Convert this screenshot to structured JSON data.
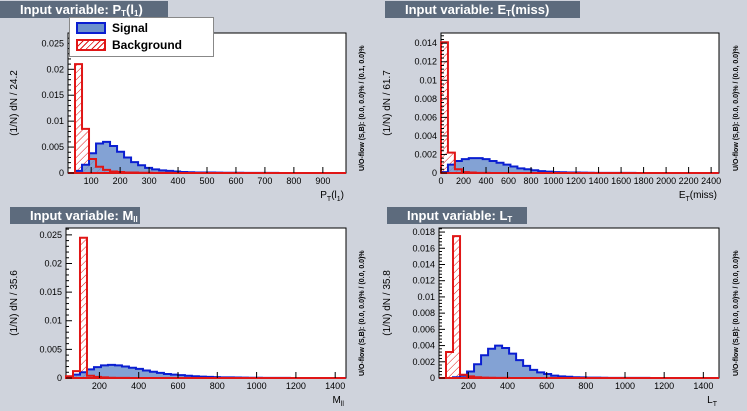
{
  "colors": {
    "signal_fill": "#6d92cc",
    "signal_line": "#0a1ed1",
    "background_line": "#e01616",
    "banner": "#5d6b7d",
    "canvas": "#cfd3dc"
  },
  "legend": {
    "signal": "Signal",
    "background": "Background"
  },
  "chart_data": [
    {
      "type": "bar",
      "title": "Input variable: P_T(l_1)",
      "title_main": "Input variable: P",
      "title_sub": "T",
      "title_tail": "(l",
      "title_sub2": "1",
      "title_end": ")",
      "xlabel": "P_T(l_1)",
      "ylabel": "(1/N) dN / 24.2",
      "overflow_label": "U/O-flow (S,B): (0.0, 0.0)% / (0.1, 0.0)%",
      "xlim": [
        20,
        980
      ],
      "ylim": [
        0,
        0.027
      ],
      "xticks": [
        100,
        200,
        300,
        400,
        500,
        600,
        700,
        800,
        900
      ],
      "xtick_labels": [
        "100",
        "200",
        "300",
        "400",
        "500",
        "600",
        "700",
        "800",
        "900"
      ],
      "yticks": [
        0,
        0.005,
        0.01,
        0.015,
        0.02,
        0.025
      ],
      "ytick_labels": [
        "0",
        "0.005",
        "0.01",
        "0.015",
        "0.02",
        "0.025"
      ],
      "bin_edges_start": 20,
      "bin_width": 24.2,
      "series": [
        {
          "name": "Signal",
          "values": [
            0.0,
            0.0004,
            0.0016,
            0.0038,
            0.0057,
            0.006,
            0.0052,
            0.0041,
            0.003,
            0.0021,
            0.0015,
            0.001,
            0.0007,
            0.0005,
            0.0004,
            0.0003,
            0.0002,
            0.00015,
            0.0001,
            0.0001,
            0.0001,
            8e-05,
            6e-05,
            5e-05,
            4e-05,
            3e-05,
            3e-05,
            2e-05,
            2e-05,
            2e-05,
            1e-05,
            1e-05,
            1e-05,
            1e-05,
            1e-05,
            1e-05,
            1e-05,
            1e-05,
            1e-05,
            0.0
          ]
        },
        {
          "name": "Background",
          "values": [
            0.0,
            0.021,
            0.0085,
            0.0027,
            0.0012,
            0.0006,
            0.0003,
            0.0002,
            0.0001,
            0.0001,
            5e-05,
            4e-05,
            3e-05,
            2e-05,
            2e-05,
            1e-05,
            1e-05,
            0.0,
            0.0,
            0.0,
            0.0,
            0.0,
            0.0,
            0.0,
            0.0,
            0.0,
            0.0,
            0.0,
            0.0,
            0.0,
            0.0,
            0.0,
            0.0,
            0.0,
            0.0,
            0.0,
            0.0,
            0.0,
            0.0,
            0.0
          ]
        }
      ]
    },
    {
      "type": "bar",
      "title": "Input variable: E_T(miss)",
      "title_main": "Input variable: E",
      "title_sub": "T",
      "title_tail": "(miss)",
      "title_sub2": "",
      "title_end": "",
      "xlabel": "E_T(miss)",
      "ylabel": "(1/N) dN / 61.7",
      "overflow_label": "U/O-flow (S,B): (0.0, 0.0)% / (0.0, 0.0)%",
      "xlim": [
        0,
        2470
      ],
      "ylim": [
        0,
        0.0151
      ],
      "xticks": [
        0,
        200,
        400,
        600,
        800,
        1000,
        1200,
        1400,
        1600,
        1800,
        2000,
        2200,
        2400
      ],
      "xtick_labels": [
        "0",
        "200",
        "400",
        "600",
        "800",
        "1000",
        "1200",
        "1400",
        "1600",
        "1800",
        "2000",
        "2200",
        "2400"
      ],
      "yticks": [
        0,
        0.002,
        0.004,
        0.006,
        0.008,
        0.01,
        0.012,
        0.014
      ],
      "ytick_labels": [
        "0",
        "0.002",
        "0.004",
        "0.006",
        "0.008",
        "0.01",
        "0.012",
        "0.014"
      ],
      "bin_edges_start": 0,
      "bin_width": 61.7,
      "series": [
        {
          "name": "Signal",
          "values": [
            0.0001,
            0.0009,
            0.0013,
            0.0015,
            0.0016,
            0.0016,
            0.0015,
            0.0013,
            0.0011,
            0.0009,
            0.0007,
            0.0005,
            0.0004,
            0.0003,
            0.0002,
            0.00015,
            0.0001,
            8e-05,
            6e-05,
            5e-05,
            4e-05,
            3e-05,
            2e-05,
            2e-05,
            1e-05,
            1e-05,
            1e-05,
            1e-05,
            0.0,
            0.0,
            0.0,
            0.0,
            0.0,
            0.0,
            0.0,
            0.0,
            0.0,
            0.0,
            0.0,
            0.0
          ]
        },
        {
          "name": "Background",
          "values": [
            0.0141,
            0.0022,
            0.0004,
            0.0001,
            5e-05,
            2e-05,
            1e-05,
            0.0,
            0.0,
            0.0,
            0.0,
            0.0,
            0.0,
            0.0,
            0.0,
            0.0,
            0.0,
            0.0,
            0.0,
            0.0,
            0.0,
            0.0,
            0.0,
            0.0,
            0.0,
            0.0,
            0.0,
            0.0,
            0.0,
            0.0,
            0.0,
            0.0,
            0.0,
            0.0,
            0.0,
            0.0,
            0.0,
            0.0,
            0.0,
            0.0
          ]
        }
      ]
    },
    {
      "type": "bar",
      "title": "Input variable: M_ll",
      "title_main": "Input variable: M",
      "title_sub": "ll",
      "title_tail": "",
      "title_sub2": "",
      "title_end": "",
      "xlabel": "M_ll",
      "ylabel": "(1/N) dN / 35.6",
      "overflow_label": "U/O-flow (S,B): (0.0, 0.0)% / (0.0, 0.0)%",
      "xlim": [
        30,
        1455
      ],
      "ylim": [
        0,
        0.0262
      ],
      "xticks": [
        200,
        400,
        600,
        800,
        1000,
        1200,
        1400
      ],
      "xtick_labels": [
        "200",
        "400",
        "600",
        "800",
        "1000",
        "1200",
        "1400"
      ],
      "yticks": [
        0,
        0.005,
        0.01,
        0.015,
        0.02,
        0.025
      ],
      "ytick_labels": [
        "0",
        "0.005",
        "0.01",
        "0.015",
        "0.02",
        "0.025"
      ],
      "bin_edges_start": 30,
      "bin_width": 35.6,
      "series": [
        {
          "name": "Signal",
          "values": [
            0.0002,
            0.0006,
            0.001,
            0.0015,
            0.0019,
            0.0022,
            0.0023,
            0.0022,
            0.002,
            0.0018,
            0.0016,
            0.0013,
            0.0011,
            0.0009,
            0.0007,
            0.0006,
            0.0005,
            0.0004,
            0.0003,
            0.00025,
            0.0002,
            0.00015,
            0.00012,
            0.0001,
            8e-05,
            6e-05,
            5e-05,
            4e-05,
            3e-05,
            2e-05,
            2e-05,
            2e-05,
            1e-05,
            1e-05,
            1e-05,
            1e-05,
            1e-05,
            0.0,
            0.0,
            0.0
          ]
        },
        {
          "name": "Background",
          "values": [
            0.0003,
            0.0012,
            0.0245,
            0.0004,
            0.0002,
            0.0001,
            5e-05,
            3e-05,
            2e-05,
            1e-05,
            1e-05,
            0.0,
            0.0,
            0.0,
            0.0,
            0.0,
            0.0,
            0.0,
            0.0,
            0.0,
            0.0,
            0.0,
            0.0,
            0.0,
            0.0,
            0.0,
            0.0,
            0.0,
            0.0,
            0.0,
            0.0,
            0.0,
            0.0,
            0.0,
            0.0,
            0.0,
            0.0,
            0.0,
            0.0,
            0.0
          ]
        }
      ]
    },
    {
      "type": "bar",
      "title": "Input variable: L_T",
      "title_main": "Input variable: L",
      "title_sub": "T",
      "title_tail": "",
      "title_sub2": "",
      "title_end": "",
      "xlabel": "L_T",
      "ylabel": "(1/N) dN / 35.8",
      "overflow_label": "U/O-flow (S,B): (0.0, 0.0)% / (0.0, 0.0)%",
      "xlim": [
        50,
        1480
      ],
      "ylim": [
        0,
        0.0185
      ],
      "xticks": [
        200,
        400,
        600,
        800,
        1000,
        1200,
        1400
      ],
      "xtick_labels": [
        "200",
        "400",
        "600",
        "800",
        "1000",
        "1200",
        "1400"
      ],
      "yticks": [
        0,
        0.002,
        0.004,
        0.006,
        0.008,
        0.01,
        0.012,
        0.014,
        0.016,
        0.018
      ],
      "ytick_labels": [
        "0",
        "0.002",
        "0.004",
        "0.006",
        "0.008",
        "0.01",
        "0.012",
        "0.014",
        "0.016",
        "0.018"
      ],
      "bin_edges_start": 50,
      "bin_width": 35.8,
      "series": [
        {
          "name": "Signal",
          "values": [
            0.0,
            0.0,
            0.0001,
            0.0003,
            0.0008,
            0.0017,
            0.0028,
            0.0036,
            0.004,
            0.0037,
            0.003,
            0.0022,
            0.0015,
            0.001,
            0.0007,
            0.0005,
            0.0003,
            0.0002,
            0.00015,
            0.0001,
            8e-05,
            5e-05,
            4e-05,
            3e-05,
            2e-05,
            2e-05,
            1e-05,
            1e-05,
            1e-05,
            1e-05,
            0.0,
            0.0,
            0.0,
            0.0,
            0.0,
            0.0,
            0.0,
            0.0,
            0.0,
            0.0
          ]
        },
        {
          "name": "Background",
          "values": [
            0.0,
            0.0032,
            0.0175,
            0.0004,
            0.0002,
            0.0001,
            5e-05,
            3e-05,
            2e-05,
            1e-05,
            0.0,
            0.0,
            0.0,
            0.0,
            0.0,
            0.0,
            0.0,
            0.0,
            0.0,
            0.0,
            0.0,
            0.0,
            0.0,
            0.0,
            0.0,
            0.0,
            0.0,
            0.0,
            0.0,
            0.0,
            0.0,
            0.0,
            0.0,
            0.0,
            0.0,
            0.0,
            0.0,
            0.0,
            0.0,
            0.0
          ]
        }
      ]
    }
  ]
}
